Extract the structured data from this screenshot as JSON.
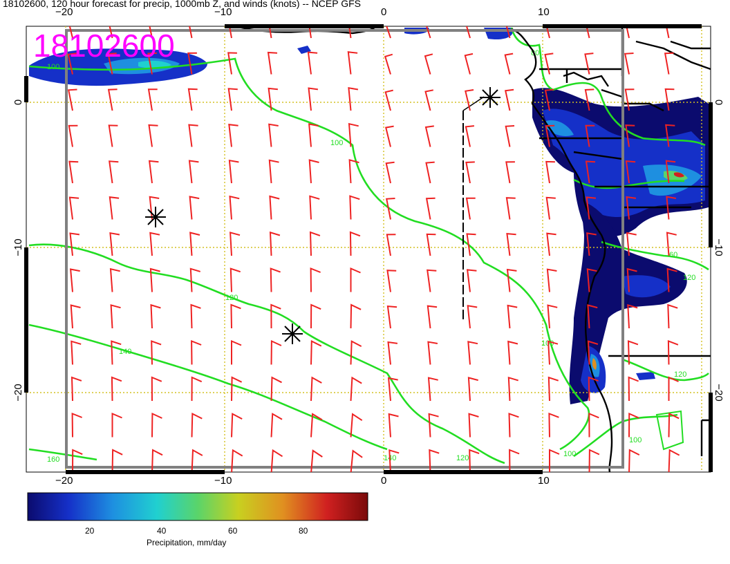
{
  "title": "18102600, 120 hour forecast for precip, 1000mb Z, and winds (knots) -- NCEP GFS",
  "stamp": "18102600",
  "axes": {
    "x_ticks": [
      "−20",
      "−10",
      "0",
      "10"
    ],
    "y_ticks": [
      "0",
      "−10",
      "−20"
    ]
  },
  "contour_labels": [
    "100",
    "100",
    "100",
    "120",
    "120",
    "120",
    "140",
    "140",
    "160",
    "80",
    "100",
    "100",
    "120",
    "60"
  ],
  "colorbar": {
    "label": "Precipitation, mm/day",
    "ticks": [
      "20",
      "40",
      "60",
      "80"
    ],
    "colors": [
      "#0b0b6e",
      "#1530c8",
      "#1e8fe0",
      "#20d0d0",
      "#5ad46a",
      "#c8d020",
      "#e09020",
      "#d02020",
      "#7a0a0a"
    ]
  },
  "legend_colors": {
    "contour": "#22dd22",
    "wind": "#ee2222",
    "grid": "#d4c020",
    "coast": "#000000",
    "box": "#808080"
  }
}
